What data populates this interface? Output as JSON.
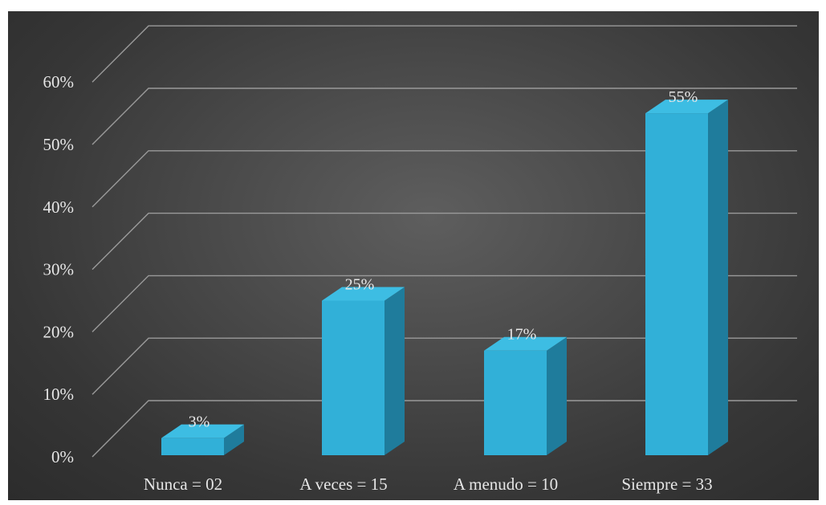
{
  "chart_data": {
    "type": "bar",
    "three_d": true,
    "categories": [
      "Nunca = 02",
      "A veces = 15",
      "A menudo = 10",
      "Siempre = 33"
    ],
    "values": [
      3,
      25,
      17,
      55
    ],
    "data_labels": [
      "3%",
      "25%",
      "17%",
      "55%"
    ],
    "y_ticks": [
      "0%",
      "10%",
      "20%",
      "30%",
      "40%",
      "50%",
      "60%"
    ],
    "ylim": [
      0,
      60
    ],
    "grid": true,
    "legend": false,
    "title": "",
    "xlabel": "",
    "ylabel": "",
    "colors": {
      "bar_front": "#31b0d8",
      "bar_side": "#1f7c9c",
      "bar_top": "#3dbde3",
      "gridline": "#9a9a9a",
      "text": "#e6e6e6",
      "background": "#454545"
    }
  }
}
